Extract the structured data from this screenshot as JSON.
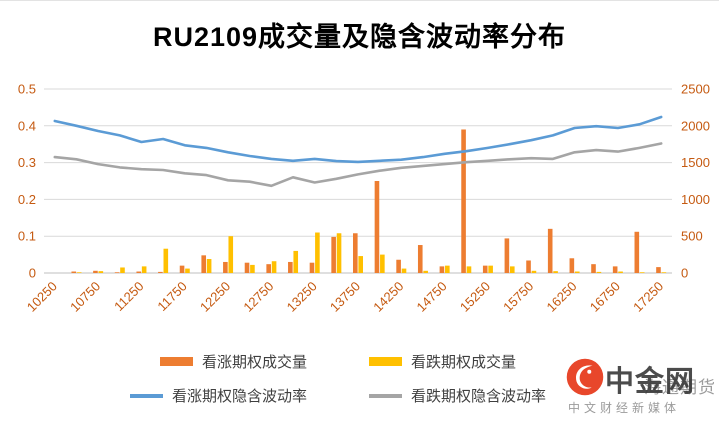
{
  "chart_data": {
    "type": "bar+line combo",
    "title": "RU2109成交量及隐含波动率分布",
    "xlabel": "",
    "ylabel_left": "",
    "ylabel_right": "",
    "legend_position": "bottom",
    "grid": "horizontal",
    "axis_color": "#C55A11",
    "grid_color": "#D9D9D9",
    "categories": [
      10250,
      10500,
      10750,
      11000,
      11250,
      11500,
      11750,
      12000,
      12250,
      12500,
      12750,
      13000,
      13250,
      13500,
      13750,
      14000,
      14250,
      14500,
      14750,
      15000,
      15250,
      15500,
      15750,
      16000,
      16250,
      16500,
      16750,
      17000,
      17250
    ],
    "x_tick_labels": [
      "10250",
      "10750",
      "11250",
      "11750",
      "12250",
      "12750",
      "13250",
      "13750",
      "14250",
      "14750",
      "15250",
      "15750",
      "16250",
      "16750",
      "17250"
    ],
    "left_axis": {
      "min": 0,
      "max": 0.5,
      "ticks": [
        "0",
        "0.1",
        "0.2",
        "0.3",
        "0.4",
        "0.5"
      ]
    },
    "right_axis": {
      "min": 0,
      "max": 2500,
      "ticks": [
        "0",
        "500",
        "1000",
        "1500",
        "2000",
        "2500"
      ]
    },
    "series": [
      {
        "name": "看涨期权成交量",
        "type": "bar",
        "axis": "right",
        "color": "#ED7D31",
        "values": [
          0,
          20,
          30,
          10,
          20,
          15,
          100,
          240,
          150,
          140,
          120,
          150,
          140,
          490,
          540,
          1250,
          180,
          380,
          90,
          1950,
          100,
          470,
          170,
          600,
          200,
          120,
          90,
          560,
          80
        ]
      },
      {
        "name": "看跌期权成交量",
        "type": "bar",
        "axis": "right",
        "color": "#FFC000",
        "values": [
          0,
          10,
          25,
          75,
          90,
          330,
          60,
          190,
          500,
          110,
          160,
          300,
          550,
          540,
          230,
          250,
          60,
          30,
          100,
          90,
          100,
          90,
          30,
          25,
          20,
          15,
          20,
          10,
          10
        ]
      },
      {
        "name": "看涨期权隐含波动率",
        "type": "line",
        "axis": "left",
        "color": "#5B9BD5",
        "values": [
          0.413,
          0.4,
          0.386,
          0.374,
          0.356,
          0.364,
          0.347,
          0.34,
          0.328,
          0.318,
          0.31,
          0.305,
          0.31,
          0.304,
          0.302,
          0.305,
          0.308,
          0.315,
          0.324,
          0.331,
          0.34,
          0.35,
          0.361,
          0.374,
          0.394,
          0.399,
          0.394,
          0.404,
          0.424
        ]
      },
      {
        "name": "看跌期权隐含波动率",
        "type": "line",
        "axis": "left",
        "color": "#A5A5A5",
        "values": [
          0.315,
          0.309,
          0.296,
          0.287,
          0.282,
          0.28,
          0.271,
          0.266,
          0.252,
          0.248,
          0.237,
          0.26,
          0.246,
          0.256,
          0.268,
          0.278,
          0.286,
          0.291,
          0.296,
          0.301,
          0.305,
          0.309,
          0.312,
          0.31,
          0.328,
          0.334,
          0.33,
          0.34,
          0.352
        ]
      }
    ]
  },
  "watermark": {
    "brand": "中金网",
    "partner": "海通期货",
    "tagline": "中文财经新媒体",
    "logo_color": "#E8472B"
  }
}
